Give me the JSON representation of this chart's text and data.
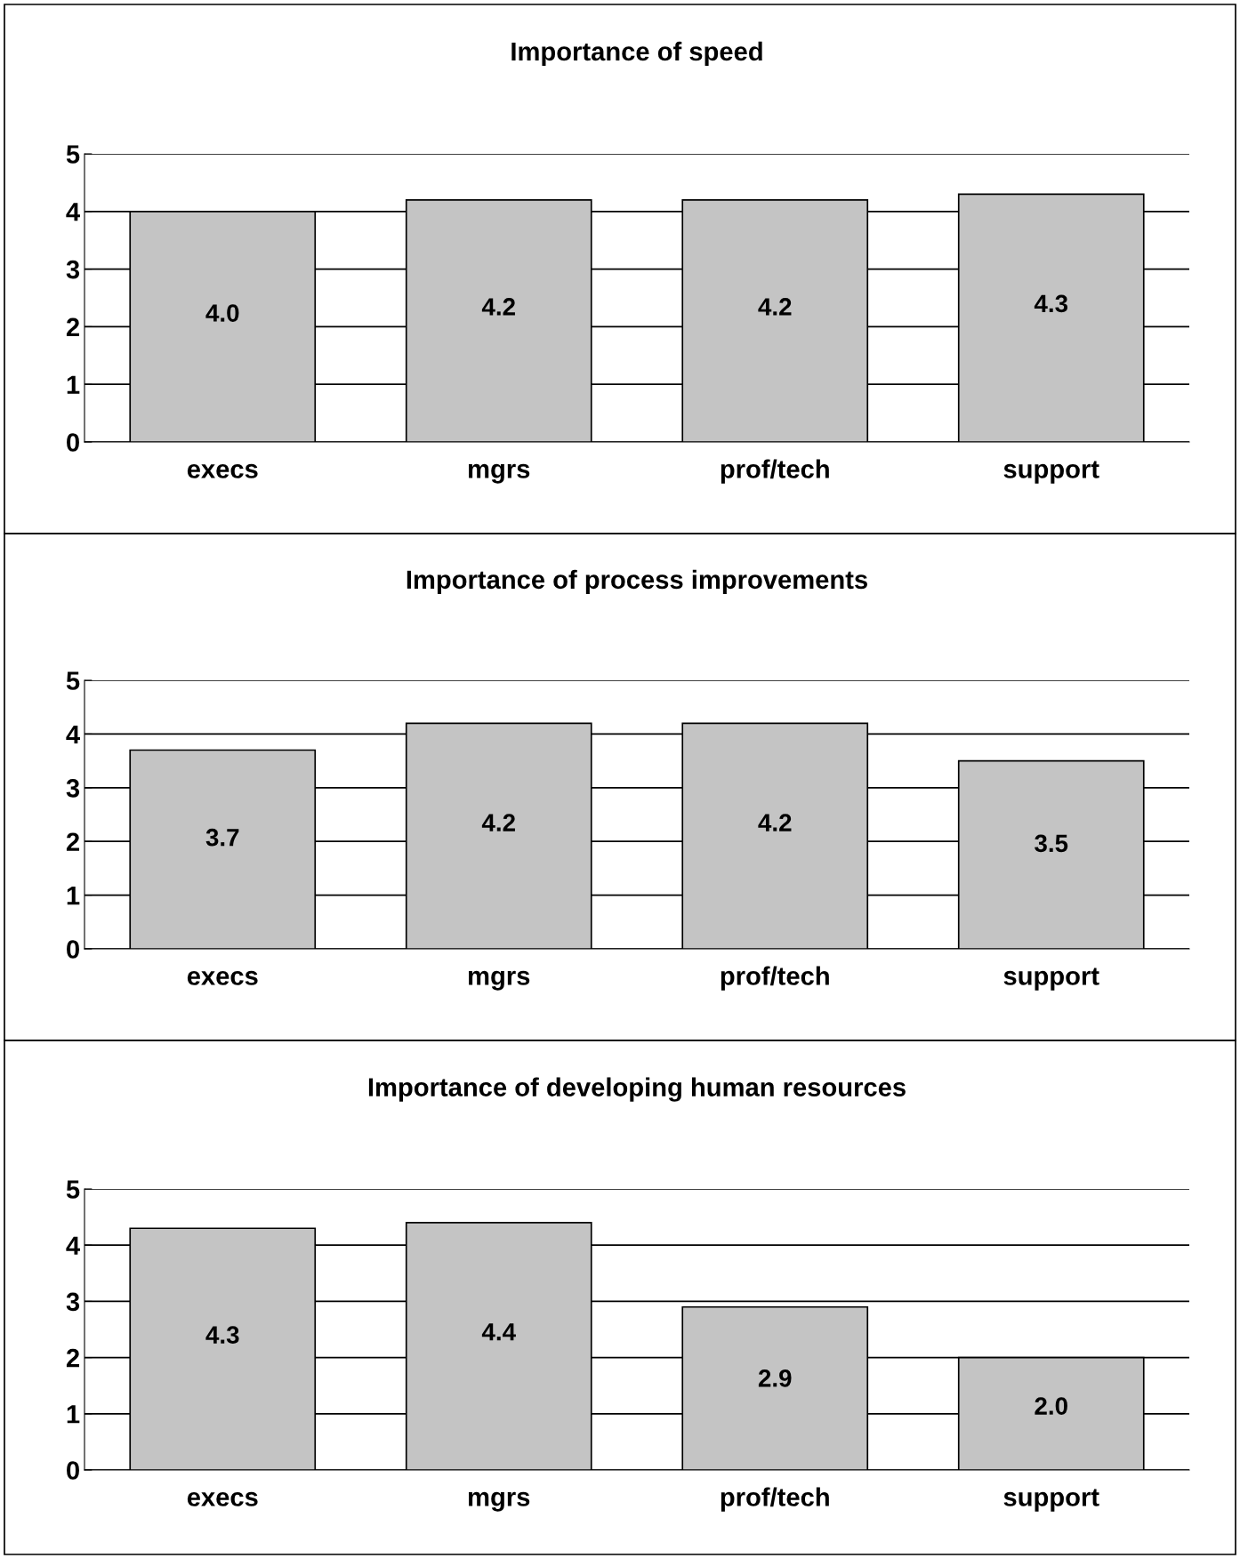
{
  "chart_data": [
    {
      "type": "bar",
      "title": "Importance of speed",
      "categories": [
        "execs",
        "mgrs",
        "prof/tech",
        "support"
      ],
      "values": [
        4.0,
        4.2,
        4.2,
        4.3
      ],
      "value_labels": [
        "4.0",
        "4.2",
        "4.2",
        "4.3"
      ],
      "color": "#c4c4c4",
      "ylim": [
        0,
        5
      ],
      "yticks": [
        0,
        1,
        2,
        3,
        4,
        5
      ],
      "grid": "y"
    },
    {
      "type": "bar",
      "title": "Importance of process improvements",
      "categories": [
        "execs",
        "mgrs",
        "prof/tech",
        "support"
      ],
      "values": [
        3.7,
        4.2,
        4.2,
        3.5
      ],
      "value_labels": [
        "3.7",
        "4.2",
        "4.2",
        "3.5"
      ],
      "color": "#c4c4c4",
      "ylim": [
        0,
        5
      ],
      "yticks": [
        0,
        1,
        2,
        3,
        4,
        5
      ],
      "grid": "y"
    },
    {
      "type": "bar",
      "title": "Importance of developing human resources",
      "categories": [
        "execs",
        "mgrs",
        "prof/tech",
        "support"
      ],
      "values": [
        4.3,
        4.4,
        2.9,
        2.0
      ],
      "value_labels": [
        "4.3",
        "4.4",
        "2.9",
        "2.0"
      ],
      "color": "#c4c4c4",
      "ylim": [
        0,
        5
      ],
      "yticks": [
        0,
        1,
        2,
        3,
        4,
        5
      ],
      "grid": "y"
    }
  ]
}
